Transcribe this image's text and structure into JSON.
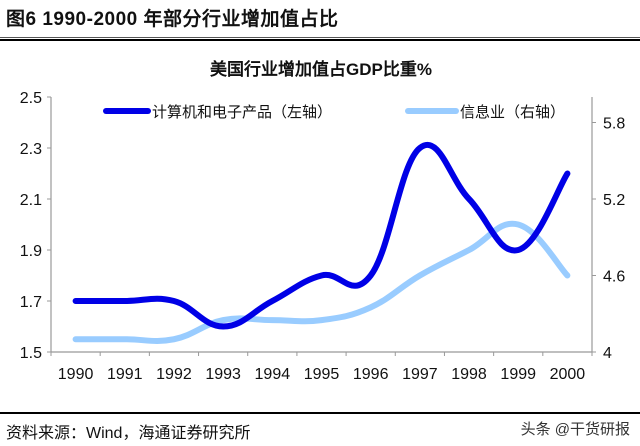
{
  "figure": {
    "title": "图6   1990-2000 年部分行业增加值占比",
    "source": "资料来源：Wind，海通证券研究所",
    "watermark": "头条 @干货研报"
  },
  "colors": {
    "series1": "#0000e6",
    "series2": "#99ccff",
    "axis": "#999999"
  },
  "chart_data": {
    "type": "line",
    "title": "美国行业增加值占GDP比重%",
    "categories": [
      "1990",
      "1991",
      "1992",
      "1993",
      "1994",
      "1995",
      "1996",
      "1997",
      "1998",
      "1999",
      "2000"
    ],
    "series": [
      {
        "name": "计算机和电子产品（左轴）",
        "axis": "left",
        "values": [
          1.7,
          1.7,
          1.7,
          1.6,
          1.7,
          1.8,
          1.8,
          2.3,
          2.1,
          1.9,
          2.2
        ]
      },
      {
        "name": "信息业（右轴）",
        "axis": "right",
        "values": [
          4.1,
          4.1,
          4.1,
          4.25,
          4.25,
          4.25,
          4.35,
          4.6,
          4.8,
          5.0,
          4.6
        ]
      }
    ],
    "left_axis": {
      "ylim": [
        1.5,
        2.5
      ],
      "ticks": [
        "1.5",
        "1.7",
        "1.9",
        "2.1",
        "2.3",
        "2.5"
      ]
    },
    "right_axis": {
      "ylim": [
        4,
        6
      ],
      "ticks": [
        "4",
        "4.6",
        "5.2",
        "5.8"
      ]
    },
    "xlabel": "",
    "ylabel": "",
    "grid": false,
    "legend": "top"
  }
}
